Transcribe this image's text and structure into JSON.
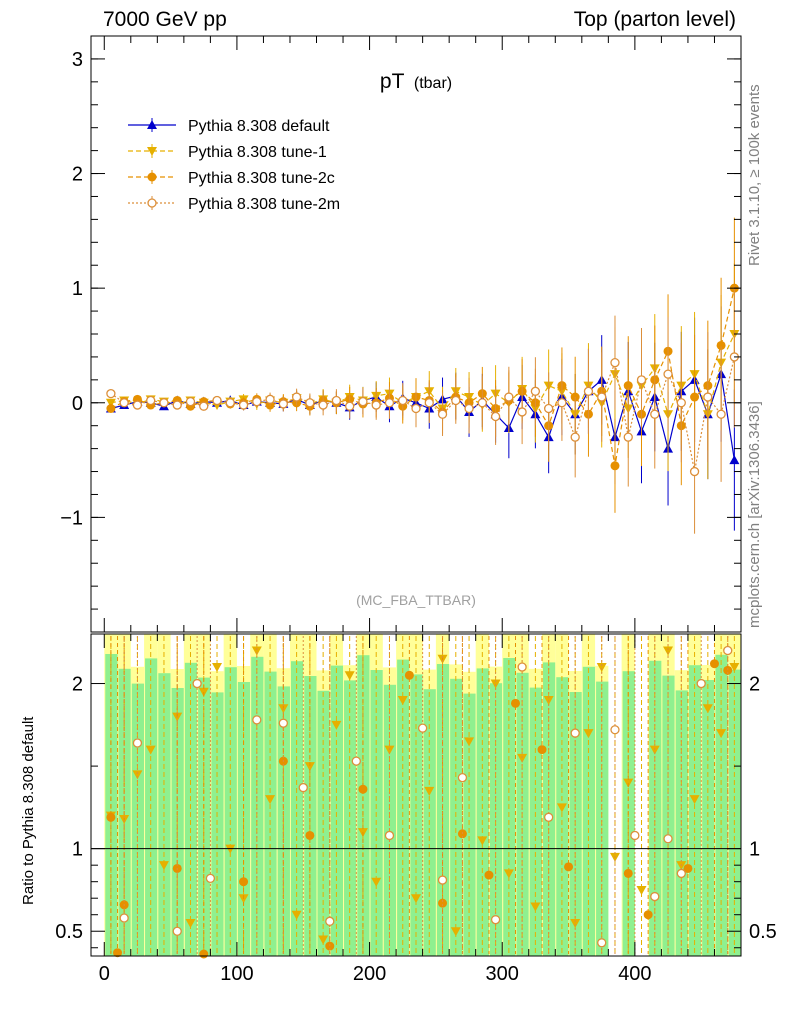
{
  "header": {
    "left": "7000 GeV pp",
    "right": "Top (parton level)"
  },
  "side_labels": {
    "rivet": "Rivet 3.1.10, ≥ 100k events",
    "mcplots": "mcplots.cern.ch [arXiv:1306.3436]"
  },
  "chart_data": [
    {
      "type": "line",
      "title": "pT",
      "title_sub": "(tbar)",
      "watermark": "(MC_FBA_TTBAR)",
      "ylim": [
        -2,
        3.2
      ],
      "xlim": [
        -10,
        480
      ],
      "yticks": [
        "3",
        "2",
        "1",
        "0",
        "−1"
      ],
      "ytick_values": [
        3,
        2,
        1,
        0,
        -1
      ],
      "legend": {
        "placement": "top-left"
      },
      "series": [
        {
          "name": "Pythia 8.308 default",
          "color": "#0000cc",
          "marker": "triangle-up",
          "x": [
            5,
            15,
            25,
            35,
            45,
            55,
            65,
            75,
            85,
            95,
            105,
            115,
            125,
            135,
            145,
            155,
            165,
            175,
            185,
            195,
            205,
            215,
            225,
            235,
            245,
            255,
            265,
            275,
            285,
            295,
            305,
            315,
            325,
            335,
            345,
            355,
            365,
            375,
            385,
            395,
            405,
            415,
            425,
            435,
            445,
            455,
            465,
            475
          ],
          "y": [
            -0.05,
            -0.02,
            0.01,
            0.0,
            -0.03,
            0.02,
            -0.01,
            0.01,
            0.0,
            0.02,
            -0.02,
            0.01,
            0.0,
            -0.01,
            0.03,
            -0.02,
            0.02,
            0.0,
            -0.04,
            0.02,
            0.05,
            -0.03,
            0.04,
            0.0,
            -0.05,
            0.03,
            0.06,
            -0.08,
            0.02,
            -0.1,
            -0.22,
            0.05,
            -0.1,
            -0.3,
            0.05,
            -0.1,
            0.1,
            0.2,
            -0.3,
            0.1,
            -0.25,
            0.05,
            -0.4,
            0.1,
            0.2,
            -0.1,
            0.25,
            -0.5
          ]
        },
        {
          "name": "Pythia 8.308 tune-1",
          "color": "#e6b000",
          "marker": "triangle-down",
          "x": [
            5,
            15,
            25,
            35,
            45,
            55,
            65,
            75,
            85,
            95,
            105,
            115,
            125,
            135,
            145,
            155,
            165,
            175,
            185,
            195,
            205,
            215,
            225,
            235,
            245,
            255,
            265,
            275,
            285,
            295,
            305,
            315,
            325,
            335,
            345,
            355,
            365,
            375,
            385,
            395,
            405,
            415,
            425,
            435,
            445,
            455,
            465,
            475
          ],
          "y": [
            0.0,
            0.02,
            -0.01,
            0.03,
            0.01,
            -0.01,
            0.02,
            0.0,
            -0.02,
            0.01,
            0.03,
            -0.01,
            0.02,
            0.0,
            0.04,
            -0.01,
            0.03,
            0.0,
            0.05,
            0.02,
            0.06,
            0.08,
            0.0,
            0.05,
            0.1,
            -0.05,
            0.1,
            0.05,
            -0.02,
            0.08,
            0.0,
            0.12,
            -0.05,
            0.15,
            0.1,
            -0.1,
            0.15,
            0.0,
            0.25,
            -0.05,
            0.15,
            0.3,
            -0.1,
            0.15,
            0.25,
            -0.1,
            0.35,
            0.6
          ]
        },
        {
          "name": "Pythia 8.308 tune-2c",
          "color": "#e69000",
          "marker": "circle",
          "x": [
            5,
            15,
            25,
            35,
            45,
            55,
            65,
            75,
            85,
            95,
            105,
            115,
            125,
            135,
            145,
            155,
            165,
            175,
            185,
            195,
            205,
            215,
            225,
            235,
            245,
            255,
            265,
            275,
            285,
            295,
            305,
            315,
            325,
            335,
            345,
            355,
            365,
            375,
            385,
            395,
            405,
            415,
            425,
            435,
            445,
            455,
            465,
            475
          ],
          "y": [
            -0.05,
            0.01,
            0.03,
            -0.02,
            0.0,
            0.02,
            -0.03,
            0.01,
            0.02,
            -0.01,
            0.0,
            0.03,
            -0.02,
            0.01,
            0.0,
            -0.03,
            0.02,
            0.0,
            0.03,
            -0.01,
            0.0,
            0.04,
            -0.03,
            0.05,
            0.02,
            -0.08,
            0.05,
            0.0,
            0.08,
            -0.05,
            0.02,
            0.1,
            0.0,
            -0.2,
            0.15,
            0.05,
            -0.1,
            0.1,
            -0.55,
            0.15,
            -0.1,
            0.2,
            0.45,
            -0.2,
            0.05,
            0.15,
            0.5,
            1.0
          ]
        },
        {
          "name": "Pythia 8.308 tune-2m",
          "color": "#dc8f3a",
          "marker": "circle-open",
          "x": [
            5,
            15,
            25,
            35,
            45,
            55,
            65,
            75,
            85,
            95,
            105,
            115,
            125,
            135,
            145,
            155,
            165,
            175,
            185,
            195,
            205,
            215,
            225,
            235,
            245,
            255,
            265,
            275,
            285,
            295,
            305,
            315,
            325,
            335,
            345,
            355,
            365,
            375,
            385,
            395,
            405,
            415,
            425,
            435,
            445,
            455,
            465,
            475
          ],
          "y": [
            0.08,
            0.0,
            -0.02,
            0.02,
            0.0,
            -0.02,
            0.01,
            -0.03,
            0.02,
            0.0,
            -0.02,
            0.01,
            0.03,
            -0.01,
            0.05,
            0.0,
            -0.02,
            0.02,
            -0.03,
            0.01,
            -0.02,
            0.0,
            0.02,
            -0.05,
            0.0,
            -0.1,
            0.02,
            -0.05,
            0.0,
            -0.12,
            0.05,
            -0.08,
            0.1,
            -0.05,
            0.0,
            -0.3,
            0.1,
            0.05,
            0.35,
            -0.3,
            0.2,
            -0.1,
            0.25,
            0.0,
            -0.6,
            0.05,
            -0.1,
            0.4
          ]
        }
      ]
    },
    {
      "type": "line",
      "ylabel": "Ratio to Pythia 8.308 default",
      "ylim": [
        0.35,
        2.3
      ],
      "xlim": [
        -10,
        480
      ],
      "xticks": [
        "0",
        "100",
        "200",
        "300",
        "400"
      ],
      "xtick_values": [
        0,
        100,
        200,
        300,
        400
      ],
      "yticks": [
        "2",
        "1",
        "0.5"
      ],
      "ytick_values": [
        2,
        1,
        0.5
      ],
      "reference_line": 1,
      "band_colors": {
        "inner": "#8ff08f",
        "outer": "#ffff99"
      },
      "series": [
        {
          "name": "Pythia 8.308 tune-1",
          "color": "#e6b000",
          "marker": "triangle-down",
          "x": [
            5,
            15,
            25,
            35,
            45,
            55,
            65,
            75,
            85,
            95,
            105,
            115,
            125,
            135,
            145,
            155,
            165,
            175,
            185,
            195,
            205,
            215,
            225,
            235,
            245,
            255,
            265,
            275,
            285,
            295,
            305,
            315,
            325,
            335,
            345,
            355,
            365,
            375,
            385,
            395,
            405,
            415,
            425,
            435,
            445,
            455,
            465,
            475
          ],
          "y": [
            1.2,
            1.18,
            1.45,
            1.6,
            0.9,
            1.8,
            0.55,
            1.95,
            2.1,
            1.0,
            0.7,
            2.2,
            1.3,
            1.85,
            0.6,
            1.5,
            0.45,
            1.75,
            2.05,
            1.1,
            0.8,
            1.6,
            1.9,
            0.7,
            1.35,
            2.15,
            0.5,
            1.65,
            1.05,
            2.0,
            0.85,
            1.55,
            0.65,
            1.9,
            1.25,
            0.55,
            1.7,
            2.1,
            0.95,
            1.4,
            0.75,
            1.6,
            2.2,
            0.9,
            1.3,
            1.85,
            1.7,
            2.1
          ]
        },
        {
          "name": "Pythia 8.308 tune-2c",
          "color": "#e69000",
          "marker": "circle",
          "x": [
            5,
            10,
            15,
            55,
            75,
            105,
            135,
            155,
            170,
            195,
            230,
            255,
            270,
            290,
            310,
            330,
            350,
            395,
            410,
            440,
            460,
            470
          ],
          "y": [
            1.19,
            0.37,
            0.66,
            0.88,
            0.36,
            0.8,
            1.53,
            1.08,
            0.41,
            1.36,
            2.05,
            0.67,
            1.09,
            0.84,
            1.88,
            1.6,
            0.89,
            0.85,
            0.6,
            0.88,
            2.12,
            2.08
          ]
        },
        {
          "name": "Pythia 8.308 tune-2m",
          "color": "#dc8f3a",
          "marker": "circle-open",
          "x": [
            15,
            25,
            55,
            70,
            80,
            115,
            135,
            150,
            170,
            190,
            215,
            240,
            255,
            270,
            295,
            315,
            335,
            355,
            375,
            385,
            400,
            415,
            425,
            435,
            450,
            470
          ],
          "y": [
            0.58,
            1.64,
            0.5,
            2.0,
            0.82,
            1.78,
            1.76,
            1.37,
            0.56,
            1.53,
            1.08,
            1.73,
            0.81,
            1.43,
            0.57,
            2.1,
            1.19,
            1.7,
            0.43,
            1.72,
            1.08,
            0.71,
            1.06,
            0.85,
            2.0,
            2.2
          ]
        }
      ]
    }
  ]
}
